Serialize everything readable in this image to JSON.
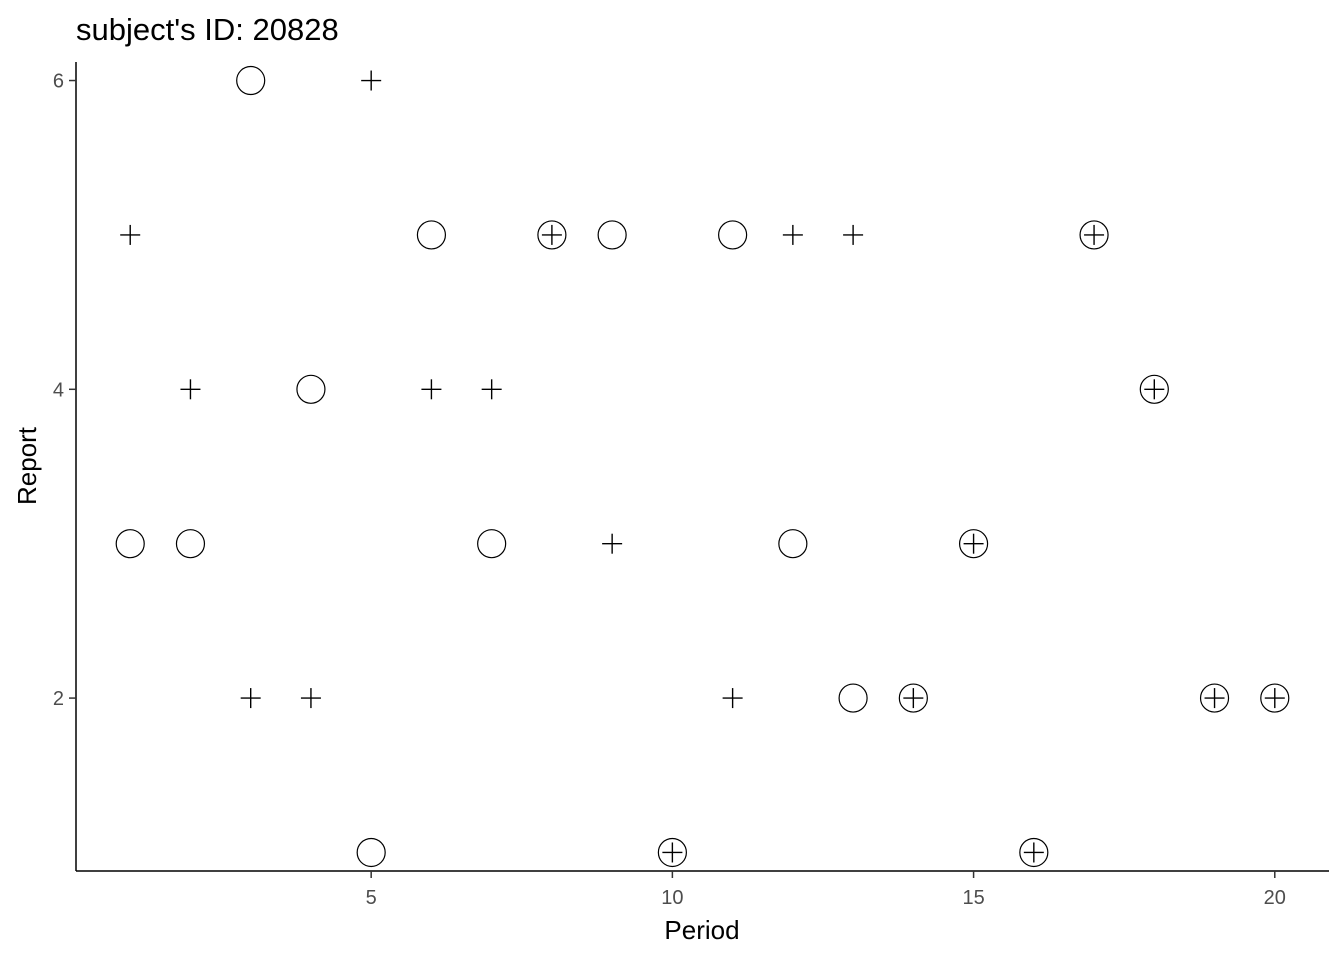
{
  "chart_data": {
    "type": "scatter",
    "title": "subject's ID: 20828",
    "xlabel": "Period",
    "ylabel": "Report",
    "xlim": [
      0.1,
      20.9
    ],
    "ylim": [
      0.88,
      6.12
    ],
    "xticks": [
      5,
      10,
      15,
      20
    ],
    "yticks": [
      2,
      4,
      6
    ],
    "grid": false,
    "series": [
      {
        "shape": "circle",
        "x": [
          1,
          2,
          3,
          4,
          5,
          6,
          7,
          8,
          9,
          10,
          11,
          12,
          13,
          14,
          15,
          16,
          17,
          18,
          19,
          20
        ],
        "y": [
          3,
          3,
          6,
          4,
          1,
          5,
          3,
          5,
          5,
          1,
          5,
          3,
          2,
          2,
          3,
          1,
          5,
          4,
          2,
          2
        ]
      },
      {
        "shape": "plus",
        "x": [
          1,
          2,
          3,
          4,
          5,
          6,
          7,
          8,
          9,
          10,
          11,
          12,
          13,
          14,
          15,
          16,
          17,
          18,
          19,
          20
        ],
        "y": [
          5,
          4,
          2,
          2,
          6,
          4,
          4,
          5,
          3,
          1,
          2,
          5,
          5,
          2,
          3,
          1,
          5,
          4,
          2,
          2
        ]
      }
    ]
  }
}
